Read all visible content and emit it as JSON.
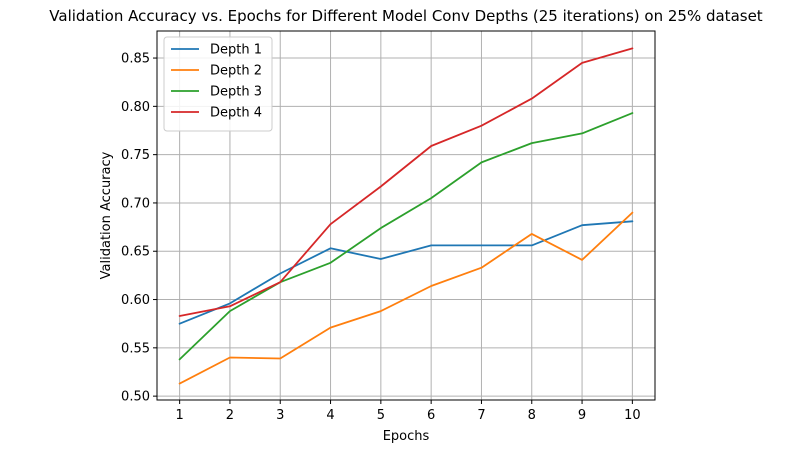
{
  "chart_data": {
    "type": "line",
    "title": "Validation Accuracy vs. Epochs for Different Model Conv Depths (25 iterations) on 25% dataset",
    "xlabel": "Epochs",
    "ylabel": "Validation Accuracy",
    "x": [
      1,
      2,
      3,
      4,
      5,
      6,
      7,
      8,
      9,
      10
    ],
    "x_ticks": [
      "1",
      "2",
      "3",
      "4",
      "5",
      "6",
      "7",
      "8",
      "9",
      "10"
    ],
    "y_ticks": [
      "0.50",
      "0.55",
      "0.60",
      "0.65",
      "0.70",
      "0.75",
      "0.80",
      "0.85"
    ],
    "xlim": [
      0.55,
      10.45
    ],
    "ylim": [
      0.496,
      0.878
    ],
    "grid": true,
    "legend_position": "top-left",
    "series": [
      {
        "name": "Depth 1",
        "color": "#1f77b4",
        "values": [
          0.575,
          0.596,
          0.627,
          0.653,
          0.642,
          0.656,
          0.656,
          0.656,
          0.677,
          0.681
        ]
      },
      {
        "name": "Depth 2",
        "color": "#ff7f0e",
        "values": [
          0.513,
          0.54,
          0.539,
          0.571,
          0.588,
          0.614,
          0.633,
          0.668,
          0.641,
          0.69
        ]
      },
      {
        "name": "Depth 3",
        "color": "#2ca02c",
        "values": [
          0.538,
          0.588,
          0.618,
          0.638,
          0.674,
          0.705,
          0.742,
          0.762,
          0.772,
          0.793
        ]
      },
      {
        "name": "Depth 4",
        "color": "#d62728",
        "values": [
          0.583,
          0.593,
          0.618,
          0.678,
          0.717,
          0.759,
          0.78,
          0.808,
          0.845,
          0.86
        ]
      }
    ]
  }
}
